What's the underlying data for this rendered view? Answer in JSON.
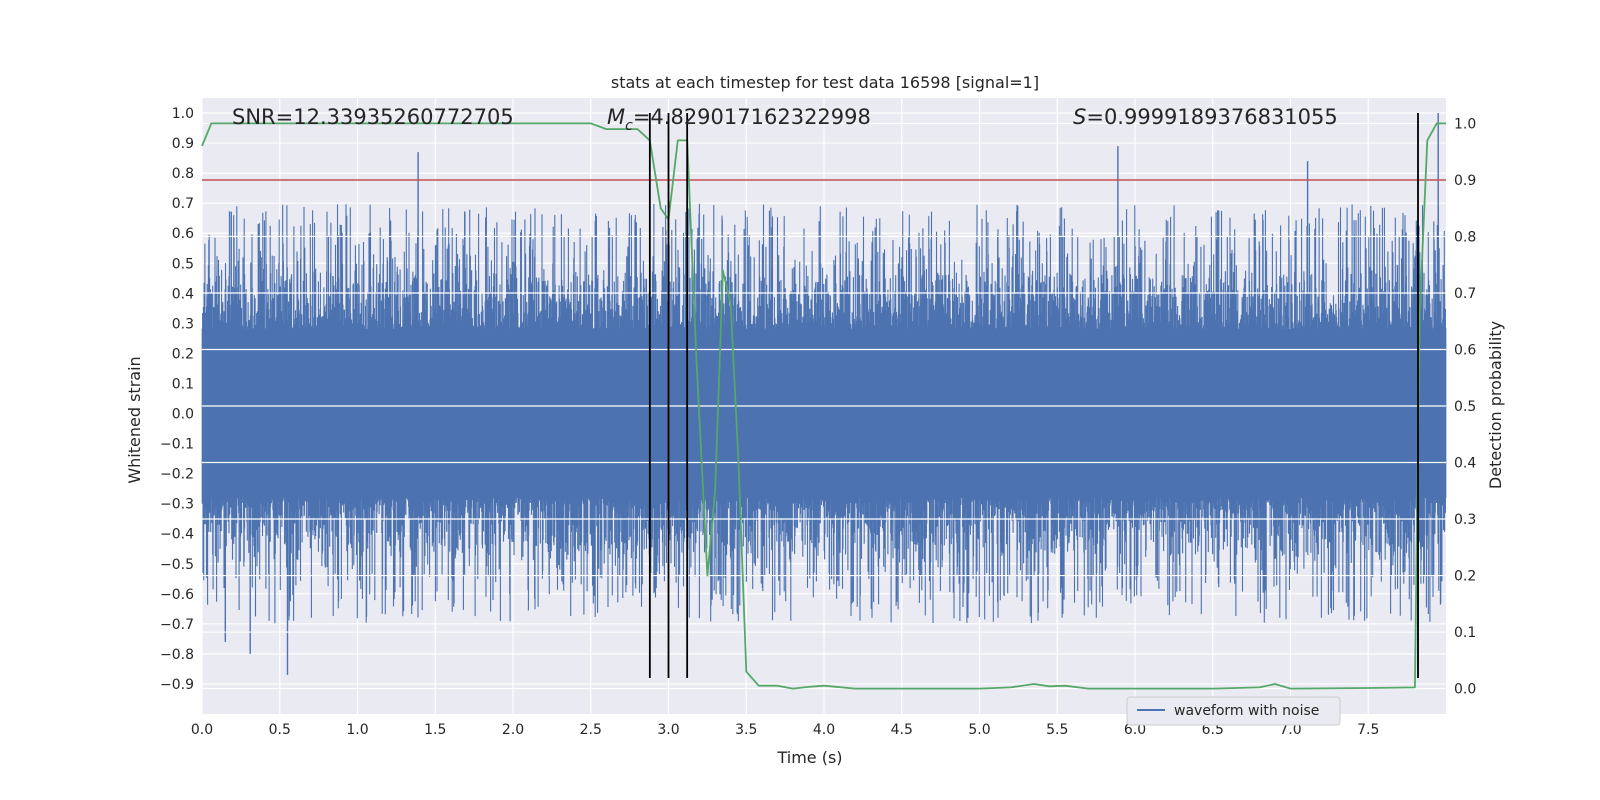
{
  "chart_data": {
    "type": "line",
    "title": "stats at each timestep for test data 16598 [signal=1]",
    "xlabel": "Time (s)",
    "ylabel": "Whitened strain",
    "y2label": "Detection probability",
    "xlim": [
      0.0,
      8.0
    ],
    "ylim": [
      -1.0,
      1.05
    ],
    "y2lim": [
      -0.045,
      1.045
    ],
    "x_ticks": [
      0.0,
      0.5,
      1.0,
      1.5,
      2.0,
      2.5,
      3.0,
      3.5,
      4.0,
      4.5,
      5.0,
      5.5,
      6.0,
      6.5,
      7.0,
      7.5
    ],
    "x_tick_labels": [
      "0.0",
      "0.5",
      "1.0",
      "1.5",
      "2.0",
      "2.5",
      "3.0",
      "3.5",
      "4.0",
      "4.5",
      "5.0",
      "5.5",
      "6.0",
      "6.5",
      "7.0",
      "7.5"
    ],
    "y_ticks": [
      1.0,
      0.9,
      0.8,
      0.7,
      0.6,
      0.5,
      0.4,
      0.3,
      0.2,
      0.1,
      0.0,
      -0.1,
      -0.2,
      -0.3,
      -0.4,
      -0.5,
      -0.6,
      -0.7,
      -0.8,
      -0.9
    ],
    "y_tick_labels": [
      "1.0",
      "0.9",
      "0.8",
      "0.7",
      "0.6",
      "0.5",
      "0.4",
      "0.3",
      "0.2",
      "0.1",
      "0.0",
      "−0.1",
      "−0.2",
      "−0.3",
      "−0.4",
      "−0.5",
      "−0.6",
      "−0.7",
      "−0.8",
      "−0.9"
    ],
    "y2_ticks": [
      1.0,
      0.9,
      0.8,
      0.7,
      0.6,
      0.5,
      0.4,
      0.3,
      0.2,
      0.1,
      0.0
    ],
    "y2_tick_labels": [
      "1.0",
      "0.9",
      "0.8",
      "0.7",
      "0.6",
      "0.5",
      "0.4",
      "0.3",
      "0.2",
      "0.1",
      "0.0"
    ],
    "annotations": {
      "snr": "SNR=12.33935260772705",
      "mc_symbol": "M",
      "mc_sub": "c",
      "mc_value": "=4.829017162322998",
      "s_symbol": "S",
      "s_value": "=0.9999189376831055"
    },
    "threshold_line": {
      "value": 0.9,
      "axis": "y2",
      "color": "#c44e52"
    },
    "vertical_lines": [
      {
        "x": 2.88,
        "y_top": 1.0,
        "y_bottom": -0.88
      },
      {
        "x": 3.0,
        "y_top": 1.0,
        "y_bottom": -0.88
      },
      {
        "x": 3.12,
        "y_top": 1.0,
        "y_bottom": -0.88
      },
      {
        "x": 7.82,
        "y_top": 1.0,
        "y_bottom": -0.88
      }
    ],
    "waveform": {
      "name": "waveform with noise",
      "color": "#4c72b0",
      "core_amplitude": 0.28,
      "spike_peaks": [
        {
          "x": 1.39,
          "y": 0.87
        },
        {
          "x": 5.89,
          "y": 0.89
        },
        {
          "x": 7.11,
          "y": 0.84
        },
        {
          "x": 7.95,
          "y": 1.0
        },
        {
          "x": 0.55,
          "y": -0.87
        },
        {
          "x": 7.82,
          "y": -0.85
        },
        {
          "x": 0.15,
          "y": -0.76
        },
        {
          "x": 0.31,
          "y": -0.8
        }
      ]
    },
    "detection_probability": {
      "name": "detection probability",
      "color": "#55a868",
      "x": [
        0.0,
        0.06,
        0.5,
        1.0,
        1.5,
        2.0,
        2.5,
        2.6,
        2.7,
        2.8,
        2.88,
        2.95,
        3.0,
        3.06,
        3.12,
        3.18,
        3.25,
        3.3,
        3.35,
        3.4,
        3.45,
        3.5,
        3.58,
        3.7,
        3.8,
        3.9,
        4.0,
        4.2,
        4.5,
        5.0,
        5.2,
        5.35,
        5.45,
        5.55,
        5.7,
        6.0,
        6.5,
        6.8,
        6.9,
        7.0,
        7.5,
        7.8,
        7.83,
        7.88,
        7.94,
        8.0
      ],
      "y": [
        0.96,
        1.0,
        1.0,
        1.0,
        1.0,
        1.0,
        1.0,
        0.99,
        0.99,
        0.99,
        0.97,
        0.85,
        0.83,
        0.97,
        0.97,
        0.58,
        0.2,
        0.35,
        0.74,
        0.68,
        0.4,
        0.03,
        0.005,
        0.005,
        0.0,
        0.003,
        0.005,
        0.0,
        0.0,
        0.0,
        0.002,
        0.008,
        0.004,
        0.005,
        0.0,
        0.0,
        0.0,
        0.002,
        0.008,
        0.0,
        0.001,
        0.002,
        0.66,
        0.97,
        1.0,
        1.0
      ]
    },
    "legend": {
      "location": "lower-right",
      "entries": [
        "waveform with noise"
      ]
    }
  }
}
